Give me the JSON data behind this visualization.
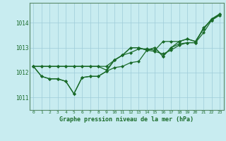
{
  "xlabel": "Graphe pression niveau de la mer (hPa)",
  "xlim": [
    -0.5,
    23.5
  ],
  "ylim": [
    1010.5,
    1014.8
  ],
  "yticks": [
    1011,
    1012,
    1013,
    1014
  ],
  "xticks": [
    0,
    1,
    2,
    3,
    4,
    5,
    6,
    7,
    8,
    9,
    10,
    11,
    12,
    13,
    14,
    15,
    16,
    17,
    18,
    19,
    20,
    21,
    22,
    23
  ],
  "background_color": "#c8ecf0",
  "grid_color": "#9eccd8",
  "line_color": "#1a6b2a",
  "marker": "D",
  "markersize": 2.0,
  "linewidth": 0.9,
  "series": [
    [
      1012.25,
      1011.85,
      1011.75,
      1011.75,
      1011.65,
      1011.15,
      1011.8,
      1011.85,
      1011.85,
      1012.05,
      1012.2,
      1012.25,
      1012.4,
      1012.45,
      1012.9,
      1012.85,
      1012.75,
      1012.9,
      1013.1,
      1013.2,
      1013.2,
      1013.6,
      1014.1,
      1014.3
    ],
    [
      1012.25,
      1012.25,
      1012.25,
      1012.25,
      1012.25,
      1012.25,
      1012.25,
      1012.25,
      1012.25,
      1012.25,
      1012.5,
      1012.7,
      1012.8,
      1012.95,
      1012.95,
      1012.9,
      1013.25,
      1013.25,
      1013.25,
      1013.35,
      1013.25,
      1013.75,
      1014.15,
      1014.35
    ],
    [
      1012.25,
      1012.25,
      1012.25,
      1012.25,
      1012.25,
      1012.25,
      1012.25,
      1012.25,
      1012.25,
      1012.1,
      1012.5,
      1012.7,
      1013.0,
      1013.0,
      1012.9,
      1013.0,
      1012.65,
      1013.0,
      1013.15,
      1013.2,
      1013.2,
      1013.8,
      1014.1,
      1014.35
    ],
    [
      1012.25,
      1011.85,
      1011.75,
      1011.75,
      1011.65,
      1011.15,
      1011.8,
      1011.85,
      1011.85,
      1012.05,
      1012.5,
      1012.7,
      1013.0,
      1013.0,
      1012.9,
      1013.0,
      1012.65,
      1013.0,
      1013.25,
      1013.35,
      1013.25,
      1013.75,
      1014.15,
      1014.35
    ]
  ]
}
